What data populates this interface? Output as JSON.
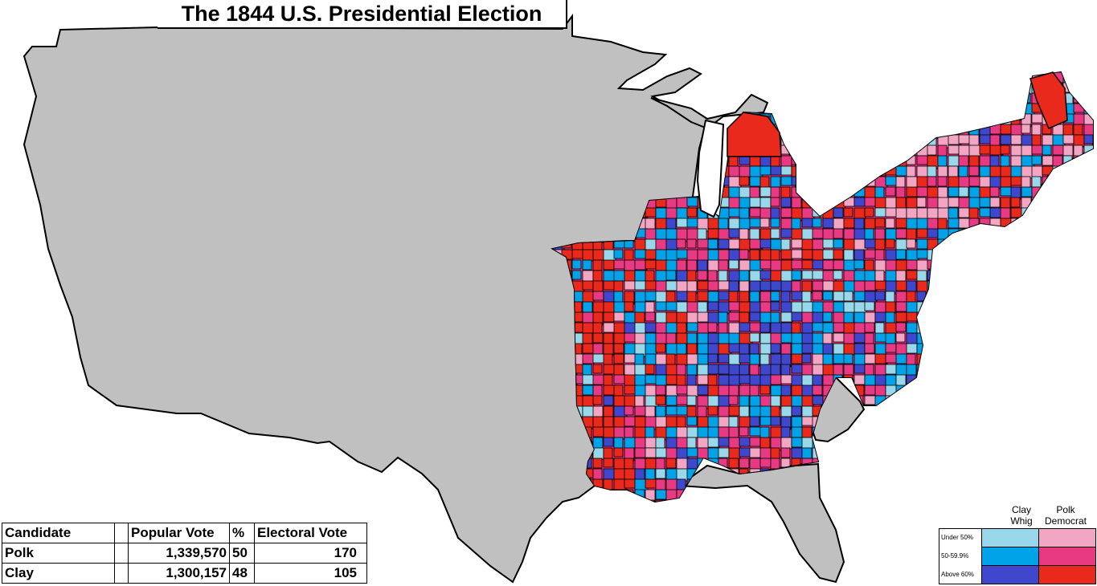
{
  "title": "The 1844 U.S. Presidential Election",
  "results": {
    "headers": {
      "candidate": "Candidate",
      "popular": "Popular Vote",
      "pct": "%",
      "electoral": "Electoral Vote"
    },
    "rows": [
      {
        "candidate": "Polk",
        "popular": "1,339,570",
        "pct": "50",
        "electoral": "170"
      },
      {
        "candidate": "Clay",
        "popular": "1,300,157",
        "pct": "48",
        "electoral": "105"
      }
    ]
  },
  "legend": {
    "whig_label": "Clay\nWhig",
    "dem_label": "Polk\nDemocrat",
    "tiers": [
      {
        "label": "Under 50%",
        "whig_color": "#99d8ea",
        "dem_color": "#f2a6c4"
      },
      {
        "label": "50-59.9%",
        "whig_color": "#00a2e8",
        "dem_color": "#e83a82"
      },
      {
        "label": "Above 60%",
        "whig_color": "#3f48cc",
        "dem_color": "#e8291c"
      }
    ]
  },
  "colors": {
    "no_data": "#c0c0c0",
    "whig_under50": "#99d8ea",
    "whig_50_60": "#00a2e8",
    "whig_above60": "#3f48cc",
    "dem_under50": "#f2a6c4",
    "dem_50_60": "#e83a82",
    "dem_above60": "#e8291c"
  }
}
